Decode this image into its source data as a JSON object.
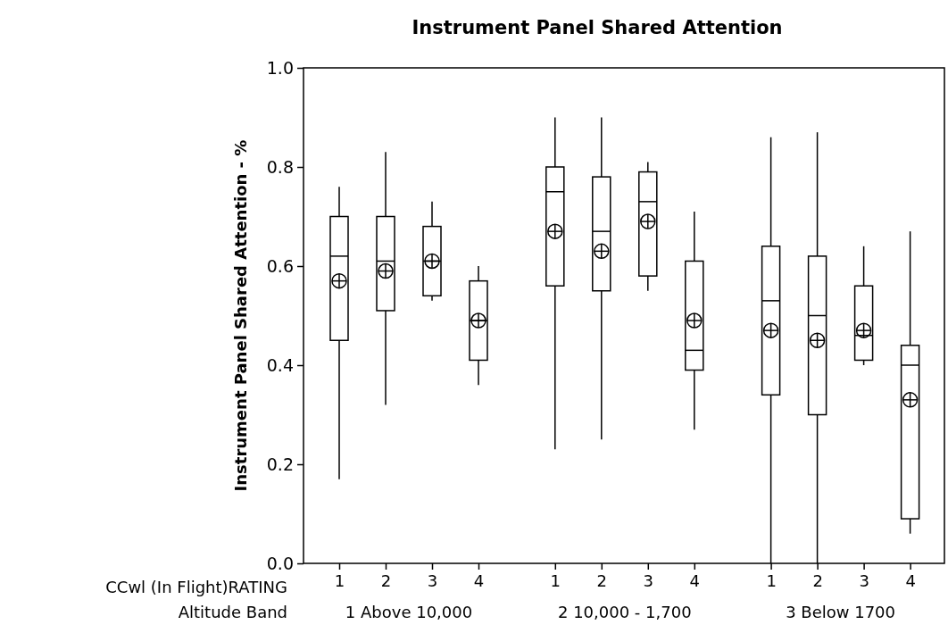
{
  "chart_data": [
    {
      "type": "box",
      "title": "Instrument Panel Shared Attention",
      "ylabel": "Instrument Panel Shared Attention - %",
      "xlabel": "1 Above 10,000",
      "annotations": [
        "CCwl (In Flight)RATING",
        "Altitude Band"
      ],
      "categories": [
        "1",
        "2",
        "3",
        "4"
      ],
      "boxes": [
        {
          "low": 0.17,
          "q1": 0.45,
          "median": 0.62,
          "q3": 0.7,
          "high": 0.76,
          "mean": 0.57
        },
        {
          "low": 0.32,
          "q1": 0.51,
          "median": 0.61,
          "q3": 0.7,
          "high": 0.83,
          "mean": 0.59
        },
        {
          "low": 0.53,
          "q1": 0.54,
          "median": 0.61,
          "q3": 0.68,
          "high": 0.73,
          "mean": 0.61
        },
        {
          "low": 0.36,
          "q1": 0.41,
          "median": 0.49,
          "q3": 0.57,
          "high": 0.6,
          "mean": 0.49
        }
      ],
      "color": "#000000",
      "ylim": [
        0,
        1
      ],
      "yticks": [
        {
          "value": 0,
          "label": "0.0"
        },
        0.2,
        0.4,
        0.6,
        0.8,
        {
          "value": 1,
          "label": "1.0"
        }
      ]
    },
    {
      "type": "box",
      "xlabel": "2 10,000 - 1,700",
      "categories": [
        "1",
        "2",
        "3",
        "4"
      ],
      "boxes": [
        {
          "low": 0.23,
          "q1": 0.56,
          "median": 0.75,
          "q3": 0.8,
          "high": 0.9,
          "mean": 0.67
        },
        {
          "low": 0.25,
          "q1": 0.55,
          "median": 0.67,
          "q3": 0.78,
          "high": 0.9,
          "mean": 0.63
        },
        {
          "low": 0.55,
          "q1": 0.58,
          "median": 0.73,
          "q3": 0.79,
          "high": 0.81,
          "mean": 0.69
        },
        {
          "low": 0.27,
          "q1": 0.39,
          "median": 0.43,
          "q3": 0.61,
          "high": 0.71,
          "mean": 0.49
        }
      ],
      "color": "#000000",
      "ylim": [
        0,
        1
      ],
      "tick_labels": "x"
    },
    {
      "type": "box",
      "xlabel": "3 Below 1700",
      "categories": [
        "1",
        "2",
        "3",
        "4"
      ],
      "boxes": [
        {
          "low": 0.0,
          "q1": 0.34,
          "median": 0.53,
          "q3": 0.64,
          "high": 0.86,
          "mean": 0.47
        },
        {
          "low": 0.0,
          "q1": 0.3,
          "median": 0.5,
          "q3": 0.62,
          "high": 0.87,
          "mean": 0.45
        },
        {
          "low": 0.4,
          "q1": 0.41,
          "median": 0.46,
          "q3": 0.56,
          "high": 0.64,
          "mean": 0.47
        },
        {
          "low": 0.06,
          "q1": 0.09,
          "median": 0.4,
          "q3": 0.44,
          "high": 0.67,
          "mean": 0.33
        }
      ],
      "color": "#000000",
      "ylim": [
        0,
        1
      ],
      "tick_labels": "x"
    }
  ]
}
